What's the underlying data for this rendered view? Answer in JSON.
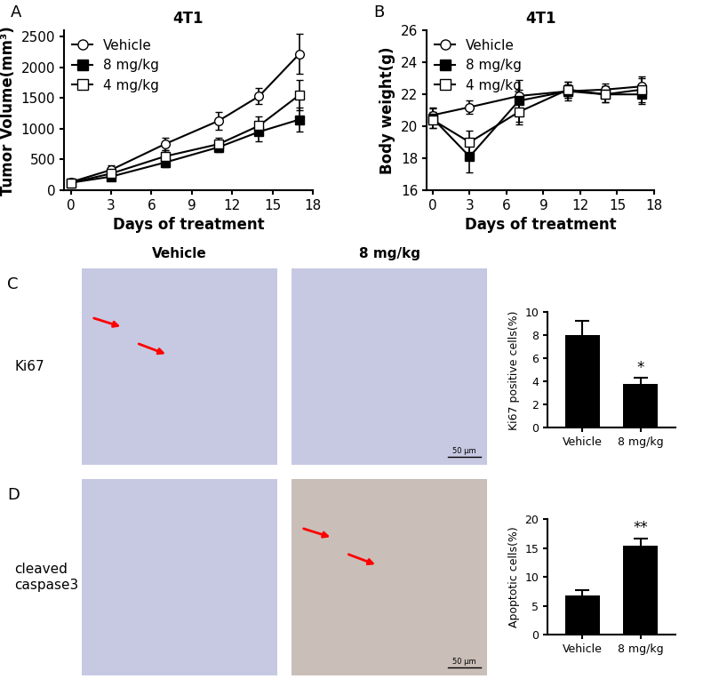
{
  "chart_data": [
    {
      "panel": "A",
      "type": "line",
      "title": "4T1",
      "x_label": "Days of treatment",
      "y_label": "Tumor Volume(mm³)",
      "x": [
        0,
        3,
        7,
        11,
        14,
        17
      ],
      "xlim": [
        -0.5,
        18
      ],
      "xticks": [
        0,
        3,
        6,
        9,
        12,
        15,
        18
      ],
      "ylim": [
        0,
        2600
      ],
      "yticks": [
        0,
        500,
        1000,
        1500,
        2000,
        2500
      ],
      "legend": "upper left",
      "series": [
        {
          "name": "Vehicle",
          "color": "#000000",
          "marker": "circle_open",
          "values": [
            130,
            330,
            750,
            1130,
            1530,
            2220
          ],
          "errors": [
            40,
            80,
            100,
            150,
            130,
            330
          ]
        },
        {
          "name": "8 mg/kg",
          "color": "#000000",
          "marker": "square_filled",
          "values": [
            120,
            220,
            450,
            700,
            950,
            1150
          ],
          "errors": [
            30,
            60,
            80,
            80,
            150,
            200
          ]
        },
        {
          "name": "4 mg/kg",
          "color": "#000000",
          "marker": "square_open",
          "values": [
            120,
            270,
            550,
            750,
            1050,
            1550
          ],
          "errors": [
            30,
            70,
            100,
            100,
            150,
            250
          ]
        }
      ]
    },
    {
      "panel": "B",
      "type": "line",
      "title": "4T1",
      "x_label": "Days of treatment",
      "y_label": "Body weight(g)",
      "x": [
        0,
        3,
        7,
        11,
        14,
        17
      ],
      "xlim": [
        -0.5,
        18
      ],
      "xticks": [
        0,
        3,
        6,
        9,
        12,
        15,
        18
      ],
      "ylim": [
        16,
        26
      ],
      "yticks": [
        16,
        18,
        20,
        22,
        24,
        26
      ],
      "legend": "upper left",
      "series": [
        {
          "name": "Vehicle",
          "color": "#000000",
          "marker": "circle_open",
          "values": [
            20.7,
            21.2,
            21.9,
            22.2,
            22.3,
            22.5
          ],
          "errors": [
            0.5,
            0.4,
            0.4,
            0.4,
            0.4,
            0.5
          ]
        },
        {
          "name": "8 mg/kg",
          "color": "#000000",
          "marker": "square_filled",
          "values": [
            20.5,
            18.1,
            21.6,
            22.2,
            22.0,
            22.0
          ],
          "errors": [
            0.6,
            1.0,
            1.3,
            0.6,
            0.5,
            0.6
          ]
        },
        {
          "name": "4 mg/kg",
          "color": "#000000",
          "marker": "square_open",
          "values": [
            20.4,
            19.0,
            20.9,
            22.3,
            22.0,
            22.3
          ],
          "errors": [
            0.5,
            0.7,
            0.8,
            0.5,
            0.5,
            0.8
          ]
        }
      ]
    },
    {
      "panel": "C",
      "type": "bar",
      "y_label": "Ki67 positive cells(%)",
      "categories": [
        "Vehicle",
        "8 mg/kg"
      ],
      "values": [
        8.0,
        3.8
      ],
      "errors": [
        1.3,
        0.5
      ],
      "color": "#000000",
      "ylim": [
        0,
        10
      ],
      "yticks": [
        0,
        2,
        4,
        6,
        8,
        10
      ],
      "annotations": [
        {
          "category": "8 mg/kg",
          "text": "*"
        }
      ]
    },
    {
      "panel": "D",
      "type": "bar",
      "y_label": "Apoptotic cells(%)",
      "categories": [
        "Vehicle",
        "8 mg/kg"
      ],
      "values": [
        6.8,
        15.5
      ],
      "errors": [
        1.0,
        1.2
      ],
      "color": "#000000",
      "ylim": [
        0,
        20
      ],
      "yticks": [
        0,
        5,
        10,
        15,
        20
      ],
      "annotations": [
        {
          "category": "8 mg/kg",
          "text": "**"
        }
      ]
    }
  ],
  "image_panels": {
    "columns": [
      "Vehicle",
      "8 mg/kg"
    ],
    "rows": [
      {
        "panel": "C",
        "label": "Ki67"
      },
      {
        "panel": "D",
        "label": "cleaved caspase3"
      }
    ],
    "scale_bar": "50 μm"
  }
}
